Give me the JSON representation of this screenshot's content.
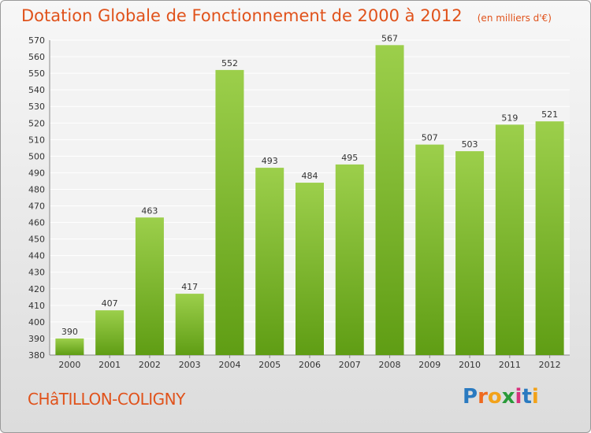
{
  "header": {
    "title": "Dotation Globale de Fonctionnement de 2000 à 2012",
    "unit": "(en milliers d'€)"
  },
  "footer": {
    "commune": "CHâTILLON-COLIGNY",
    "logo_text": "Proxiti"
  },
  "colors": {
    "bar_top": "#9ccf4b",
    "bar_bottom": "#5f9d14",
    "title": "#e0521b",
    "logo_letters": [
      "#2a7ac0",
      "#ef6a1f",
      "#f2a21a",
      "#2a9a3a",
      "#d8317d",
      "#2a7ac0",
      "#f2a21a"
    ]
  },
  "chart_data": {
    "type": "bar",
    "categories": [
      "2000",
      "2001",
      "2002",
      "2003",
      "2004",
      "2005",
      "2006",
      "2007",
      "2008",
      "2009",
      "2010",
      "2011",
      "2012"
    ],
    "values": [
      390,
      407,
      463,
      417,
      552,
      493,
      484,
      495,
      567,
      507,
      503,
      519,
      521
    ],
    "title": "Dotation Globale de Fonctionnement de 2000 à 2012",
    "xlabel": "",
    "ylabel": "",
    "ylim": [
      380,
      570
    ],
    "yticks": [
      380,
      390,
      400,
      410,
      420,
      430,
      440,
      450,
      460,
      470,
      480,
      490,
      500,
      510,
      520,
      530,
      540,
      550,
      560,
      570
    ],
    "grid": true
  }
}
